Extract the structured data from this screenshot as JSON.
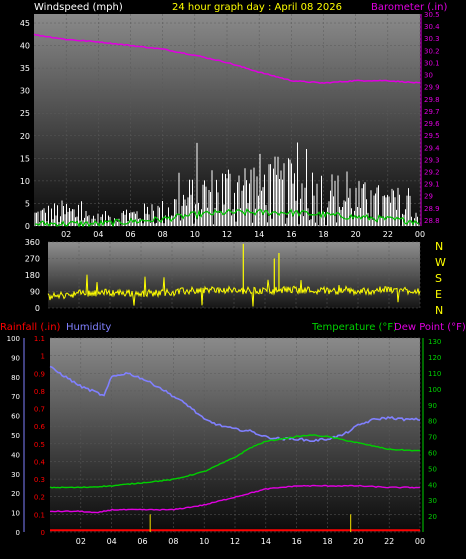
{
  "header": {
    "left": "Windspeed (mph)",
    "center": "24 hour graph day : April 08 2026",
    "right": "Barometer (.in)"
  },
  "labels": {
    "rainfall": "Rainfall (.in)",
    "humidity": "Humidity",
    "temperature": "Temperature (°F)",
    "dewpoint": "Dew Point (°F)",
    "compass": [
      "N",
      "W",
      "S",
      "E",
      "N"
    ]
  },
  "colors": {
    "wind": "#ffffff",
    "gust_avg": "#00c000",
    "barometer": "#e000e0",
    "direction": "#ffff00",
    "rain": "#ff0000",
    "rain_rate": "#d0c000",
    "humidity": "#8080ff",
    "temperature": "#00d000",
    "dewpoint": "#e000e0",
    "text_white": "#ffffff",
    "text_yellow": "#ffff00"
  },
  "chart_data": [
    {
      "type": "area",
      "name": "wind_barometer",
      "x_ticks": [
        "02",
        "04",
        "06",
        "08",
        "10",
        "12",
        "14",
        "16",
        "18",
        "20",
        "22",
        "00"
      ],
      "x_range": [
        0,
        24
      ],
      "y_left": {
        "label": "Windspeed (mph)",
        "ticks": [
          0,
          5,
          10,
          15,
          20,
          25,
          30,
          35,
          40,
          45
        ],
        "range": [
          0,
          47
        ]
      },
      "y_right": {
        "label": "Barometer (.in)",
        "ticks": [
          "28.8",
          "28.9",
          "29",
          "29.1",
          "29.2",
          "29.3",
          "29.4",
          "29.5",
          "29.6",
          "29.7",
          "29.8",
          "29.9",
          "30",
          "30.1",
          "30.2",
          "30.3",
          "30.4",
          "30.5"
        ],
        "range": [
          28.75,
          30.5
        ]
      },
      "barometer": {
        "x": [
          0,
          2,
          4,
          6,
          8,
          10,
          12,
          14,
          16,
          18,
          20,
          22,
          24
        ],
        "y": [
          30.33,
          30.29,
          30.27,
          30.24,
          30.21,
          30.16,
          30.1,
          30.02,
          29.95,
          29.93,
          29.95,
          29.95,
          29.93
        ]
      },
      "wind_envelope": {
        "x": [
          0,
          2,
          4,
          6,
          8,
          10,
          12,
          14,
          16,
          18,
          20,
          22,
          24
        ],
        "y": [
          3,
          4,
          2,
          3,
          4,
          8,
          10,
          11,
          10,
          9,
          7,
          6,
          3
        ]
      },
      "gust_avg": {
        "x": [
          0,
          2,
          4,
          6,
          8,
          10,
          12,
          14,
          16,
          18,
          20,
          22,
          24
        ],
        "y": [
          0.5,
          0.5,
          0.5,
          1,
          1.5,
          2.5,
          3,
          3,
          3,
          2.5,
          2,
          1.5,
          1
        ]
      },
      "grid": true
    },
    {
      "type": "scatter",
      "name": "wind_direction",
      "x_range": [
        0,
        24
      ],
      "y_ticks": [
        0,
        90,
        180,
        270,
        360
      ],
      "y_range": [
        0,
        360
      ],
      "direction": {
        "x": [
          0,
          2,
          4,
          6,
          8,
          10,
          12,
          14,
          16,
          18,
          20,
          22,
          24
        ],
        "y": [
          60,
          80,
          85,
          80,
          85,
          100,
          95,
          95,
          100,
          95,
          90,
          100,
          95
        ]
      },
      "grid": true
    },
    {
      "type": "line",
      "name": "rain_humidity_temp",
      "x_ticks": [
        "02",
        "04",
        "06",
        "08",
        "10",
        "12",
        "14",
        "16",
        "18",
        "20",
        "22",
        "00"
      ],
      "x_range": [
        0,
        24
      ],
      "y_humidity": {
        "ticks": [
          0,
          10,
          20,
          30,
          40,
          50,
          60,
          70,
          80,
          90,
          100
        ],
        "range": [
          0,
          100
        ]
      },
      "y_rain": {
        "ticks": [
          "0",
          "0.1",
          "0.2",
          "0.3",
          "0.4",
          "0.5",
          "0.6",
          "0.7",
          "0.8",
          "0.9",
          "1",
          "1.1"
        ],
        "range": [
          0,
          1.1
        ]
      },
      "y_temp": {
        "ticks": [
          20,
          30,
          40,
          50,
          60,
          70,
          80,
          90,
          100,
          110,
          120,
          130
        ],
        "range": [
          10,
          132
        ]
      },
      "humidity": {
        "x": [
          0,
          1,
          2,
          3,
          3.5,
          4,
          5,
          6,
          7,
          8,
          9,
          10,
          11,
          12,
          13,
          14,
          15,
          16,
          17,
          18,
          19,
          20,
          21,
          22,
          23,
          24
        ],
        "y": [
          85,
          80,
          75,
          72,
          70,
          80,
          82,
          79,
          75,
          70,
          65,
          58,
          55,
          53,
          52,
          49,
          48,
          48,
          47,
          48,
          50,
          55,
          58,
          59,
          58,
          58
        ]
      },
      "temperature": {
        "x": [
          0,
          2,
          4,
          6,
          8,
          10,
          12,
          13,
          14,
          16,
          17,
          18,
          20,
          22,
          24
        ],
        "y": [
          38,
          38,
          39,
          41,
          43,
          48,
          57,
          63,
          67,
          70,
          71,
          70,
          66,
          62,
          61
        ]
      },
      "dewpoint": {
        "x": [
          0,
          2,
          3,
          4,
          6,
          8,
          10,
          12,
          14,
          16,
          18,
          20,
          22,
          24
        ],
        "y": [
          23,
          23,
          22,
          24,
          24,
          24,
          27,
          32,
          37,
          39,
          39,
          39,
          38,
          38
        ]
      },
      "rain_total": {
        "x": [
          0,
          24
        ],
        "y": [
          0,
          0
        ]
      },
      "rain_rate_spikes": [
        6.5,
        19.5
      ],
      "grid": true
    }
  ]
}
